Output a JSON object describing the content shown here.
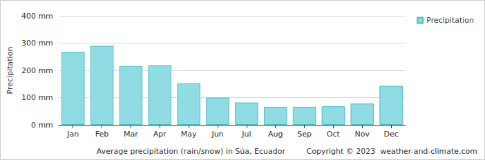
{
  "chart_data": {
    "type": "bar",
    "categories": [
      "Jan",
      "Feb",
      "Mar",
      "Apr",
      "May",
      "Jun",
      "Jul",
      "Aug",
      "Sep",
      "Oct",
      "Nov",
      "Dec"
    ],
    "series": [
      {
        "name": "Precipitation",
        "color": "#8fdde3",
        "values": [
          268,
          290,
          216,
          219,
          152,
          100,
          82,
          66,
          66,
          68,
          78,
          143
        ]
      }
    ],
    "y_label": "Precipitation",
    "x_label": "Average precipitation (rain/snow) in Súa, Ecuador",
    "annotations": [
      "Copyright © 2023  weather-and-climate.com"
    ],
    "ylim": [
      0,
      400
    ],
    "yticks": [
      {
        "value": 0,
        "label": "0 mm"
      },
      {
        "value": 100,
        "label": "100 mm"
      },
      {
        "value": 200,
        "label": "200 mm"
      },
      {
        "value": 300,
        "label": "300 mm"
      },
      {
        "value": 400,
        "label": "400 mm"
      }
    ],
    "grid": true,
    "legend": "top-right"
  }
}
